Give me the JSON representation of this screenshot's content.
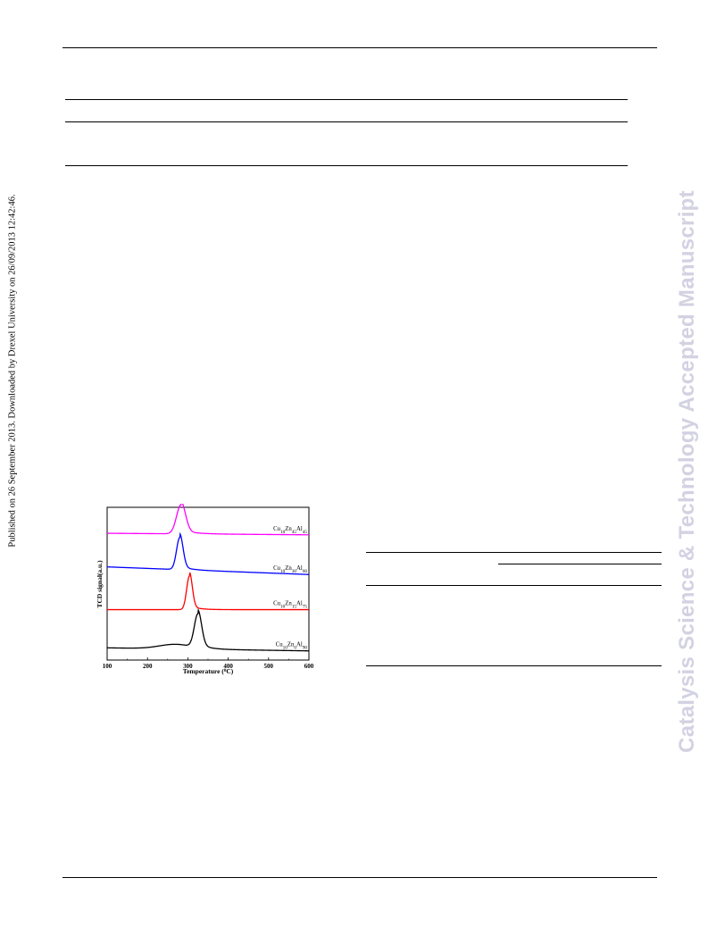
{
  "sidebar": {
    "published_note": "Published on 26 September 2013. Downloaded by Drexel University on 26/09/2013 12:42:46.",
    "journal_watermark": "Catalysis Science & Technology Accepted Manuscript"
  },
  "chart_data": {
    "type": "line",
    "xlabel": "Temperature (⁰C)",
    "xlabel_parts": [
      "Temperature (",
      "0",
      "C)"
    ],
    "ylabel": "TCD signal(a.u.)",
    "xlim": [
      100,
      600
    ],
    "x_ticks": [
      100,
      200,
      300,
      400,
      500,
      600
    ],
    "grid": false,
    "legend": "inline labels at right",
    "series": [
      {
        "name": "Cu10Zn45Al45",
        "label_parts": [
          [
            "Cu",
            ""
          ],
          [
            "10",
            "sub"
          ],
          [
            "Zn",
            ""
          ],
          [
            "45",
            "sub"
          ],
          [
            "Al",
            ""
          ],
          [
            "45",
            "sub"
          ]
        ],
        "color": "#ff00ff",
        "baseline": 0.82,
        "peak_center": 283,
        "peak_height": 0.19,
        "peak_width": 11,
        "tail": 0.01,
        "shoulder_height": 0,
        "shoulder_center": 0,
        "shoulder_width": 0
      },
      {
        "name": "Cu10Zn30Al60",
        "label_parts": [
          [
            "Cu",
            ""
          ],
          [
            "10",
            "sub"
          ],
          [
            "Zn",
            ""
          ],
          [
            "30",
            "sub"
          ],
          [
            "Al",
            ""
          ],
          [
            "60",
            "sub"
          ]
        ],
        "color": "#0000ff",
        "baseline": 0.56,
        "peak_center": 280,
        "peak_height": 0.21,
        "peak_width": 8,
        "tail": 0.05,
        "shoulder_height": 0,
        "shoulder_center": 0,
        "shoulder_width": 0
      },
      {
        "name": "Cu10Zn15Al75",
        "label_parts": [
          [
            "Cu",
            ""
          ],
          [
            "10",
            "sub"
          ],
          [
            "Zn",
            ""
          ],
          [
            "15",
            "sub"
          ],
          [
            "Al",
            ""
          ],
          [
            "75",
            "sub"
          ]
        ],
        "color": "#ff0000",
        "baseline": 0.33,
        "peak_center": 304,
        "peak_height": 0.22,
        "peak_width": 7,
        "tail": 0.0,
        "shoulder_height": 0,
        "shoulder_center": 0,
        "shoulder_width": 0
      },
      {
        "name": "Cu10Zn0Al90",
        "label_parts": [
          [
            "Cu",
            ""
          ],
          [
            "10",
            "sub"
          ],
          [
            "Zn",
            ""
          ],
          [
            "0",
            "sub"
          ],
          [
            "Al",
            ""
          ],
          [
            "90",
            "sub"
          ]
        ],
        "color": "#000000",
        "baseline": 0.06,
        "peak_center": 325,
        "peak_height": 0.22,
        "peak_width": 9,
        "tail": 0.02,
        "shoulder_height": 0.03,
        "shoulder_center": 270,
        "shoulder_width": 40
      }
    ]
  }
}
